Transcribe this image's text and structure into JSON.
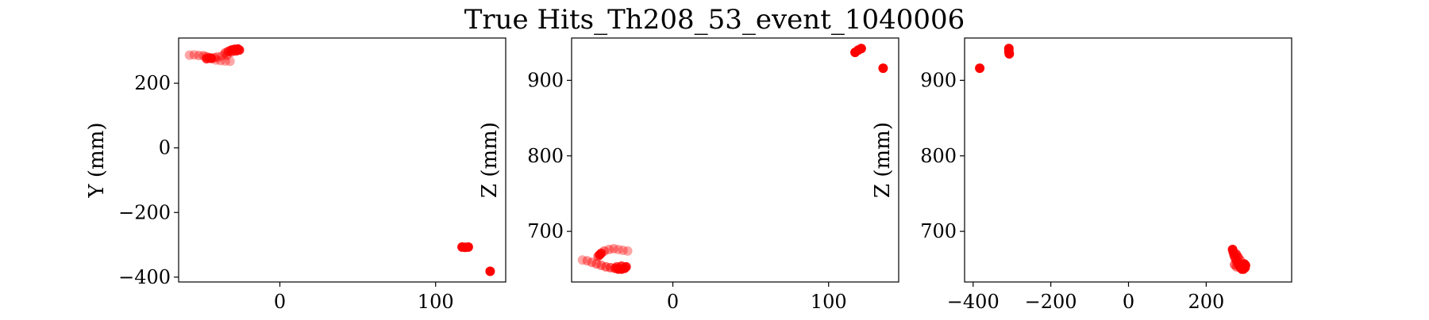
{
  "figure": {
    "title": "True Hits_Th208_53_event_1040006"
  },
  "colors": {
    "hits": "#ff0000",
    "axes": "#000000",
    "background": "#ffffff"
  },
  "chart_data": [
    {
      "type": "scatter",
      "xlabel": "",
      "ylabel": "Y (mm)",
      "xlim": [
        -65,
        145
      ],
      "ylim": [
        -415,
        340
      ],
      "xticks": [
        0,
        100
      ],
      "yticks": [
        -400,
        -200,
        0,
        200
      ],
      "grid": false,
      "legend": "none",
      "points": [
        {
          "x": -58,
          "y": 287,
          "alpha": 0.35
        },
        {
          "x": -55,
          "y": 288,
          "alpha": 0.35
        },
        {
          "x": -52,
          "y": 286,
          "alpha": 0.4
        },
        {
          "x": -49,
          "y": 285,
          "alpha": 0.45
        },
        {
          "x": -47,
          "y": 282,
          "alpha": 0.5
        },
        {
          "x": -45,
          "y": 279,
          "alpha": 0.7
        },
        {
          "x": -47,
          "y": 276,
          "alpha": 0.85
        },
        {
          "x": -44,
          "y": 277,
          "alpha": 0.9
        },
        {
          "x": -42,
          "y": 279,
          "alpha": 0.5
        },
        {
          "x": -40,
          "y": 282,
          "alpha": 0.4
        },
        {
          "x": -37,
          "y": 285,
          "alpha": 0.4
        },
        {
          "x": -34,
          "y": 287,
          "alpha": 0.45
        },
        {
          "x": -41,
          "y": 272,
          "alpha": 0.35
        },
        {
          "x": -38,
          "y": 270,
          "alpha": 0.35
        },
        {
          "x": -35,
          "y": 269,
          "alpha": 0.35
        },
        {
          "x": -32,
          "y": 268,
          "alpha": 0.35
        },
        {
          "x": -35,
          "y": 294,
          "alpha": 0.6
        },
        {
          "x": -33,
          "y": 299,
          "alpha": 0.75
        },
        {
          "x": -31,
          "y": 303,
          "alpha": 0.9
        },
        {
          "x": -29,
          "y": 305,
          "alpha": 0.95
        },
        {
          "x": -27,
          "y": 306,
          "alpha": 0.95
        },
        {
          "x": -31,
          "y": 297,
          "alpha": 0.7
        },
        {
          "x": -28,
          "y": 300,
          "alpha": 0.85
        },
        {
          "x": -26,
          "y": 303,
          "alpha": 0.9
        },
        {
          "x": 117,
          "y": -307,
          "alpha": 1
        },
        {
          "x": 119,
          "y": -308,
          "alpha": 1
        },
        {
          "x": 121,
          "y": -307,
          "alpha": 1
        },
        {
          "x": 135,
          "y": -382,
          "alpha": 1
        }
      ]
    },
    {
      "type": "scatter",
      "xlabel": "",
      "ylabel": "Z (mm)",
      "xlim": [
        -65,
        145
      ],
      "ylim": [
        633,
        956
      ],
      "xticks": [
        0,
        100
      ],
      "yticks": [
        700,
        800,
        900
      ],
      "grid": false,
      "legend": "none",
      "points": [
        {
          "x": -58,
          "y": 662,
          "alpha": 0.35
        },
        {
          "x": -55,
          "y": 661,
          "alpha": 0.4
        },
        {
          "x": -52,
          "y": 659,
          "alpha": 0.45
        },
        {
          "x": -49,
          "y": 657,
          "alpha": 0.5
        },
        {
          "x": -46,
          "y": 655,
          "alpha": 0.5
        },
        {
          "x": -43,
          "y": 653,
          "alpha": 0.55
        },
        {
          "x": -40,
          "y": 652,
          "alpha": 0.6
        },
        {
          "x": -37,
          "y": 651,
          "alpha": 0.8
        },
        {
          "x": -35,
          "y": 650,
          "alpha": 0.9
        },
        {
          "x": -33,
          "y": 650,
          "alpha": 0.95
        },
        {
          "x": -31,
          "y": 651,
          "alpha": 0.95
        },
        {
          "x": -30,
          "y": 653,
          "alpha": 0.9
        },
        {
          "x": -33,
          "y": 654,
          "alpha": 0.8
        },
        {
          "x": -36,
          "y": 653,
          "alpha": 0.7
        },
        {
          "x": -48,
          "y": 667,
          "alpha": 0.6
        },
        {
          "x": -46,
          "y": 671,
          "alpha": 0.85
        },
        {
          "x": -44,
          "y": 674,
          "alpha": 0.5
        },
        {
          "x": -41,
          "y": 676,
          "alpha": 0.4
        },
        {
          "x": -38,
          "y": 677,
          "alpha": 0.4
        },
        {
          "x": -35,
          "y": 676,
          "alpha": 0.35
        },
        {
          "x": -32,
          "y": 675,
          "alpha": 0.35
        },
        {
          "x": -29,
          "y": 674,
          "alpha": 0.35
        },
        {
          "x": -47,
          "y": 669,
          "alpha": 0.9
        },
        {
          "x": 117,
          "y": 937,
          "alpha": 1
        },
        {
          "x": 119,
          "y": 940,
          "alpha": 1
        },
        {
          "x": 121,
          "y": 942,
          "alpha": 1
        },
        {
          "x": 135,
          "y": 916,
          "alpha": 1
        }
      ]
    },
    {
      "type": "scatter",
      "xlabel": "",
      "ylabel": "Z (mm)",
      "xlim": [
        -422,
        420
      ],
      "ylim": [
        633,
        956
      ],
      "xticks": [
        -400,
        -200,
        0,
        200
      ],
      "yticks": [
        700,
        800,
        900
      ],
      "grid": false,
      "legend": "none",
      "points": [
        {
          "x": -383,
          "y": 916,
          "alpha": 1
        },
        {
          "x": -308,
          "y": 942,
          "alpha": 1
        },
        {
          "x": -308,
          "y": 938,
          "alpha": 1
        },
        {
          "x": -307,
          "y": 935,
          "alpha": 1
        },
        {
          "x": 268,
          "y": 676,
          "alpha": 1
        },
        {
          "x": 270,
          "y": 672,
          "alpha": 0.9
        },
        {
          "x": 272,
          "y": 668,
          "alpha": 0.8
        },
        {
          "x": 275,
          "y": 664,
          "alpha": 0.7
        },
        {
          "x": 278,
          "y": 661,
          "alpha": 0.7
        },
        {
          "x": 281,
          "y": 658,
          "alpha": 0.7
        },
        {
          "x": 284,
          "y": 655,
          "alpha": 0.75
        },
        {
          "x": 288,
          "y": 652,
          "alpha": 0.85
        },
        {
          "x": 292,
          "y": 650,
          "alpha": 0.95
        },
        {
          "x": 296,
          "y": 650,
          "alpha": 1
        },
        {
          "x": 300,
          "y": 652,
          "alpha": 1
        },
        {
          "x": 301,
          "y": 655,
          "alpha": 1
        },
        {
          "x": 298,
          "y": 657,
          "alpha": 0.9
        },
        {
          "x": 277,
          "y": 670,
          "alpha": 0.8
        },
        {
          "x": 282,
          "y": 666,
          "alpha": 0.7
        },
        {
          "x": 287,
          "y": 662,
          "alpha": 0.6
        },
        {
          "x": 273,
          "y": 656,
          "alpha": 0.6
        },
        {
          "x": 278,
          "y": 653,
          "alpha": 0.5
        }
      ]
    }
  ]
}
